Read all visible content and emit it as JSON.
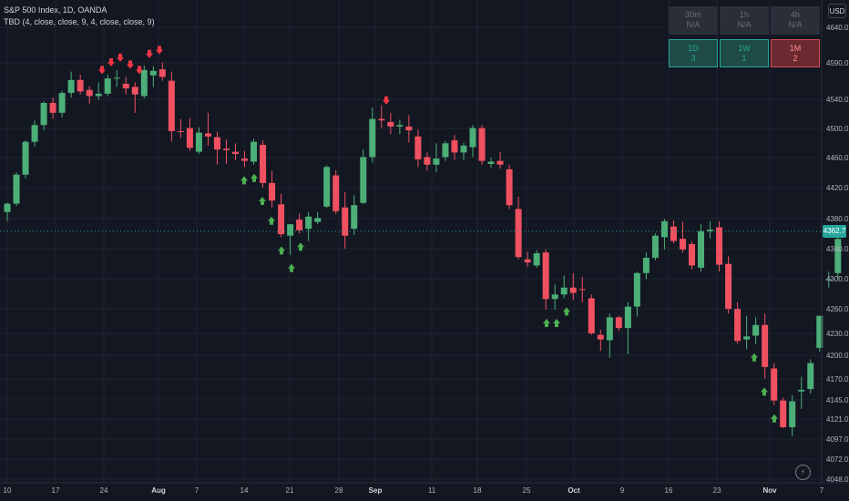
{
  "legend": {
    "title": "S&P 500 Index, 1D, OANDA",
    "indicator": "TBD (4, close, close, 9, 4, close, close, 9)"
  },
  "currency": "USD",
  "last_price": "4362.7",
  "mtf_table": {
    "row1": [
      {
        "tf": "30m",
        "val": "N/A"
      },
      {
        "tf": "1h",
        "val": "N/A"
      },
      {
        "tf": "4h",
        "val": "N/A"
      }
    ],
    "row2": [
      {
        "tf": "1D",
        "val": "3"
      },
      {
        "tf": "1W",
        "val": "1"
      },
      {
        "tf": "1M",
        "val": "2"
      }
    ]
  },
  "colors": {
    "background": "#131722",
    "grid": "#1f2330",
    "up": "#26a69a",
    "candle_up": "#4caf78",
    "candle_down": "#f05161",
    "arrow_up": "#4caf50",
    "arrow_down": "#f23645"
  },
  "chart_data": {
    "type": "candlestick",
    "symbol": "S&P 500 Index",
    "interval": "1D",
    "y_ticks": [
      4640.0,
      4590.0,
      4540.0,
      4500.0,
      4460.0,
      4420.0,
      4380.0,
      4340.0,
      4300.0,
      4260.0,
      4230.0,
      4200.0,
      4170.0,
      4145.0,
      4121.0,
      4097.0,
      4072.0,
      4048.0
    ],
    "x_ticks": [
      "10",
      "17",
      "24",
      "Aug",
      "7",
      "14",
      "21",
      "28",
      "Sep",
      "11",
      "18",
      "25",
      "Oct",
      "9",
      "16",
      "23",
      "Nov",
      "7"
    ],
    "ohlc": [
      [
        4398,
        4410,
        4386,
        4409
      ],
      [
        4409,
        4450,
        4406,
        4447
      ],
      [
        4447,
        4492,
        4442,
        4490
      ],
      [
        4490,
        4518,
        4484,
        4512
      ],
      [
        4512,
        4543,
        4505,
        4541
      ],
      [
        4541,
        4548,
        4520,
        4528
      ],
      [
        4528,
        4557,
        4522,
        4554
      ],
      [
        4554,
        4582,
        4548,
        4571
      ],
      [
        4571,
        4578,
        4552,
        4556
      ],
      [
        4558,
        4563,
        4540,
        4550
      ],
      [
        4550,
        4568,
        4545,
        4553
      ],
      [
        4553,
        4578,
        4550,
        4573
      ],
      [
        4573,
        4584,
        4562,
        4574
      ],
      [
        4566,
        4575,
        4552,
        4560
      ],
      [
        4562,
        4568,
        4528,
        4552
      ],
      [
        4550,
        4590,
        4547,
        4584
      ],
      [
        4577,
        4589,
        4562,
        4583
      ],
      [
        4585,
        4594,
        4570,
        4575
      ],
      [
        4570,
        4582,
        4490,
        4504
      ],
      [
        4504,
        4520,
        4495,
        4503
      ],
      [
        4508,
        4521,
        4478,
        4482
      ],
      [
        4477,
        4509,
        4474,
        4502
      ],
      [
        4501,
        4528,
        4485,
        4497
      ],
      [
        4496,
        4503,
        4460,
        4480
      ],
      [
        4481,
        4493,
        4461,
        4479
      ],
      [
        4477,
        4488,
        4466,
        4474
      ],
      [
        4468,
        4478,
        4457,
        4465
      ],
      [
        4464,
        4494,
        4460,
        4490
      ],
      [
        4486,
        4492,
        4430,
        4436
      ],
      [
        4436,
        4452,
        4404,
        4413
      ],
      [
        4408,
        4422,
        4365,
        4369
      ],
      [
        4367,
        4382,
        4342,
        4382
      ],
      [
        4388,
        4396,
        4370,
        4374
      ],
      [
        4376,
        4398,
        4360,
        4392
      ],
      [
        4385,
        4398,
        4382,
        4390
      ],
      [
        4405,
        4459,
        4403,
        4457
      ],
      [
        4446,
        4453,
        4395,
        4399
      ],
      [
        4404,
        4424,
        4350,
        4367
      ],
      [
        4376,
        4420,
        4368,
        4407
      ],
      [
        4410,
        4480,
        4408,
        4470
      ],
      [
        4470,
        4535,
        4463,
        4520
      ],
      [
        4520,
        4538,
        4508,
        4518
      ],
      [
        4516,
        4528,
        4500,
        4510
      ],
      [
        4510,
        4519,
        4500,
        4512
      ],
      [
        4510,
        4525,
        4489,
        4505
      ],
      [
        4497,
        4506,
        4457,
        4467
      ],
      [
        4470,
        4476,
        4452,
        4460
      ],
      [
        4460,
        4488,
        4450,
        4468
      ],
      [
        4470,
        4491,
        4465,
        4488
      ],
      [
        4492,
        4499,
        4466,
        4476
      ],
      [
        4476,
        4489,
        4466,
        4485
      ],
      [
        4483,
        4512,
        4470,
        4508
      ],
      [
        4508,
        4512,
        4460,
        4465
      ],
      [
        4461,
        4469,
        4456,
        4464
      ],
      [
        4465,
        4477,
        4455,
        4460
      ],
      [
        4454,
        4460,
        4402,
        4407
      ],
      [
        4402,
        4418,
        4336,
        4339
      ],
      [
        4336,
        4346,
        4326,
        4332
      ],
      [
        4328,
        4348,
        4325,
        4344
      ],
      [
        4345,
        4349,
        4270,
        4284
      ],
      [
        4284,
        4303,
        4270,
        4290
      ],
      [
        4290,
        4315,
        4285,
        4299
      ],
      [
        4299,
        4318,
        4283,
        4292
      ],
      [
        4297,
        4313,
        4280,
        4296
      ],
      [
        4285,
        4290,
        4237,
        4239
      ],
      [
        4237,
        4244,
        4216,
        4231
      ],
      [
        4230,
        4265,
        4207,
        4260
      ],
      [
        4260,
        4262,
        4242,
        4246
      ],
      [
        4246,
        4280,
        4212,
        4274
      ],
      [
        4274,
        4320,
        4261,
        4318
      ],
      [
        4318,
        4345,
        4310,
        4338
      ],
      [
        4338,
        4370,
        4335,
        4367
      ],
      [
        4365,
        4389,
        4349,
        4386
      ],
      [
        4379,
        4387,
        4357,
        4360
      ],
      [
        4363,
        4385,
        4345,
        4349
      ],
      [
        4356,
        4359,
        4323,
        4328
      ],
      [
        4325,
        4382,
        4320,
        4373
      ],
      [
        4373,
        4386,
        4363,
        4375
      ],
      [
        4378,
        4386,
        4320,
        4329
      ],
      [
        4330,
        4340,
        4265,
        4271
      ],
      [
        4271,
        4280,
        4225,
        4229
      ],
      [
        4231,
        4262,
        4218,
        4235
      ],
      [
        4236,
        4260,
        4225,
        4250
      ],
      [
        4250,
        4265,
        4180,
        4195
      ],
      [
        4193,
        4200,
        4145,
        4151
      ],
      [
        4151,
        4155,
        4115,
        4116
      ],
      [
        4116,
        4158,
        4104,
        4150
      ],
      [
        4163,
        4182,
        4140,
        4165
      ],
      [
        4166,
        4205,
        4160,
        4200
      ],
      [
        4220,
        4262,
        4215,
        4262
      ],
      [
        4309,
        4320,
        4299,
        4310
      ],
      [
        4318,
        4368,
        4310,
        4362.7
      ]
    ],
    "sell_signals": [
      20,
      23,
      24,
      26,
      29,
      31,
      32,
      77
    ],
    "buy_signals": [
      49,
      50,
      52,
      54,
      55,
      56,
      58,
      59,
      109,
      111,
      113,
      151,
      153,
      155
    ]
  }
}
